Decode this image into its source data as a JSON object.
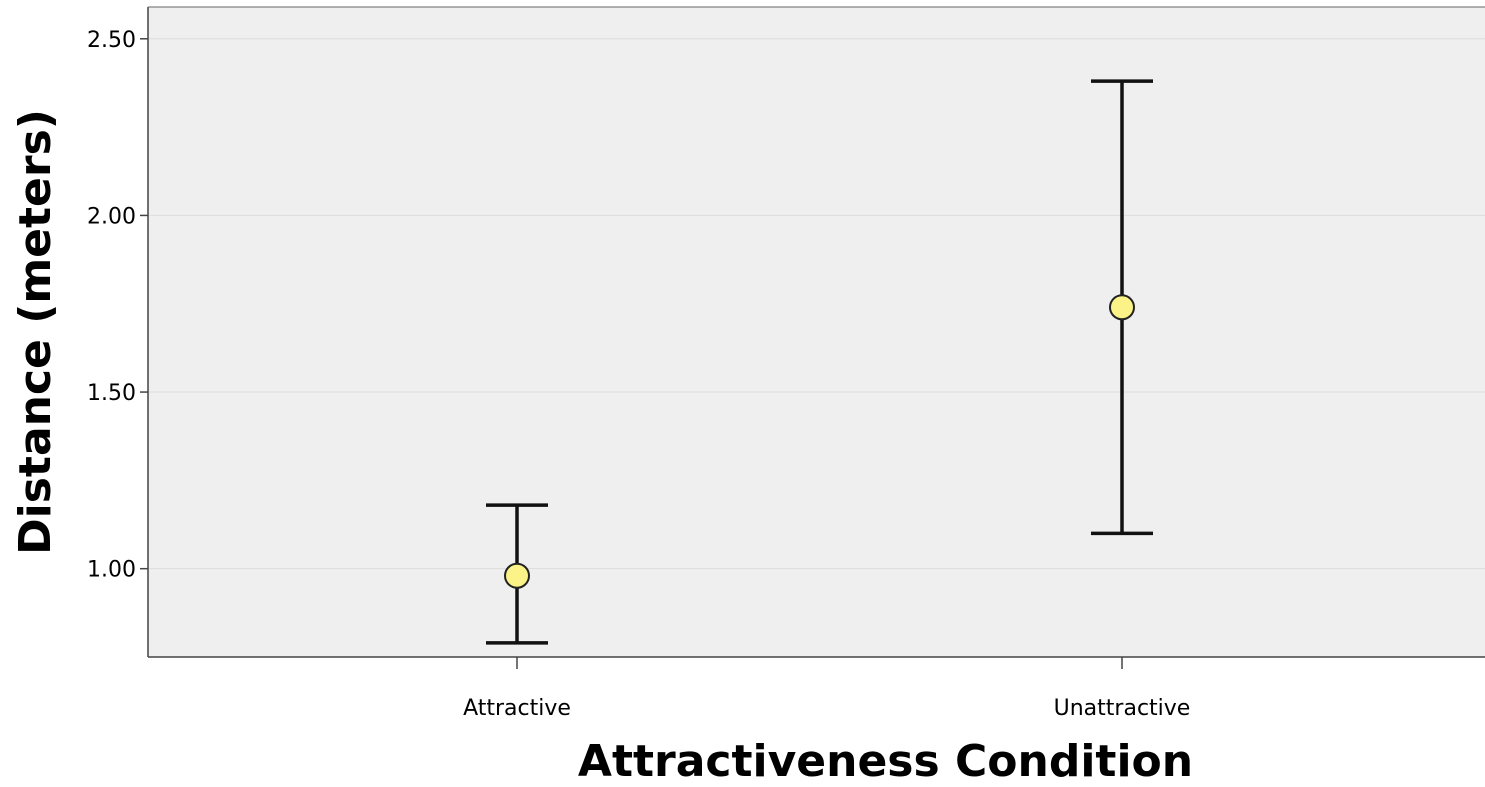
{
  "chart_data": {
    "type": "scatter",
    "subtype": "error-bar",
    "title": "",
    "xlabel": "Attractiveness Condition",
    "ylabel": "Distance (meters)",
    "categories": [
      "Attractive",
      "Unattractive"
    ],
    "values": [
      0.98,
      1.74
    ],
    "error_low": [
      0.79,
      1.1
    ],
    "error_high": [
      1.18,
      2.38
    ],
    "ylim": [
      0.75,
      2.59
    ],
    "yticks": [
      1.0,
      1.5,
      2.0,
      2.5
    ],
    "ytick_labels": [
      "1.00",
      "1.50",
      "2.00",
      "2.50"
    ],
    "grid": true,
    "legend": "none",
    "colors": {
      "plot_background": "#efefef",
      "marker_fill": "#fbf387",
      "marker_stroke": "#222222",
      "error_bar": "#111111",
      "grid": "#dddddd"
    }
  }
}
